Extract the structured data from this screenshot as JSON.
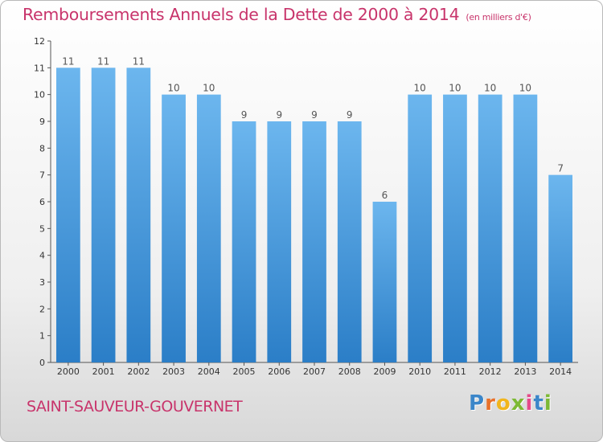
{
  "title": "Remboursements Annuels de la Dette de 2000 à 2014",
  "unit": "(en milliers d'€)",
  "commune": "SAINT-SAUVEUR-GOUVERNET",
  "logo": {
    "text": "Proxiti",
    "letters": [
      "P",
      "r",
      "o",
      "x",
      "i",
      "t",
      "i"
    ]
  },
  "colors": {
    "title": "#c8346b",
    "bar_top": "#6cb6ee",
    "bar_bottom": "#2b7ec7"
  },
  "chart_data": {
    "type": "bar",
    "categories": [
      "2000",
      "2001",
      "2002",
      "2003",
      "2004",
      "2005",
      "2006",
      "2007",
      "2008",
      "2009",
      "2010",
      "2011",
      "2012",
      "2013",
      "2014"
    ],
    "values": [
      11,
      11,
      11,
      10,
      10,
      9,
      9,
      9,
      9,
      6,
      10,
      10,
      10,
      10,
      7
    ],
    "data_labels": [
      "11",
      "11",
      "11",
      "10",
      "10",
      "9",
      "9",
      "9",
      "9",
      "6",
      "10",
      "10",
      "10",
      "10",
      "7"
    ],
    "yticks": [
      0,
      1,
      2,
      3,
      4,
      5,
      6,
      7,
      8,
      9,
      10,
      11,
      12
    ],
    "ylim": [
      0,
      12
    ],
    "grid": false,
    "xlabel": "",
    "ylabel": ""
  }
}
